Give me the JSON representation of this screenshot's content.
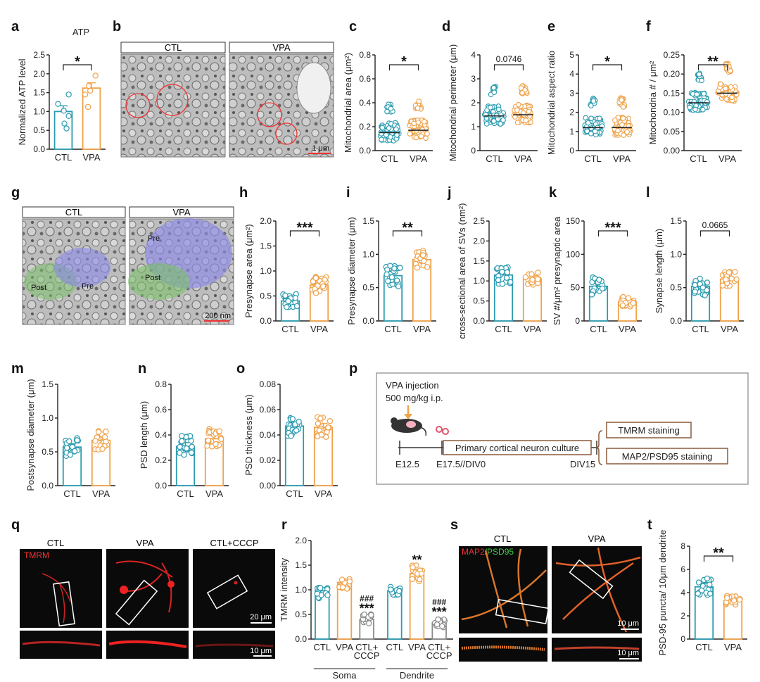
{
  "colors": {
    "ctl": "#2b9bb0",
    "vpa": "#f0a24a",
    "cccp": "#8a8a8a"
  },
  "chart_data": [
    {
      "id": "a",
      "type": "bar",
      "panel_label": "a",
      "title": "ATP",
      "ylabel": "Normalized ATP level",
      "categories": [
        "CTL",
        "VPA"
      ],
      "values": [
        1.0,
        1.62
      ],
      "sem": [
        0.15,
        0.14
      ],
      "points": [
        [
          0.55,
          0.68,
          0.88,
          1.02,
          1.2,
          1.45
        ],
        [
          1.12,
          1.45,
          1.55,
          1.68,
          1.95
        ]
      ],
      "ylim": [
        0,
        2.5
      ],
      "yticks": [
        "0.0",
        "0.5",
        "1.0",
        "1.5",
        "2.0",
        "2.5"
      ],
      "significance": "*"
    },
    {
      "id": "c",
      "type": "scatter",
      "panel_label": "c",
      "ylabel": "Mitochondrial area (μm²)",
      "categories": [
        "CTL",
        "VPA"
      ],
      "medians": [
        0.15,
        0.17
      ],
      "ylim": [
        0,
        0.8
      ],
      "yticks": [
        "0.0",
        "0.2",
        "0.4",
        "0.6",
        "0.8"
      ],
      "significance": "*"
    },
    {
      "id": "d",
      "type": "scatter",
      "panel_label": "d",
      "ylabel": "Mitochondrial perimeter (μm)",
      "categories": [
        "CTL",
        "VPA"
      ],
      "medians": [
        1.45,
        1.5
      ],
      "ylim": [
        0,
        4
      ],
      "yticks": [
        "0",
        "1",
        "2",
        "3",
        "4"
      ],
      "significance": "0.0746"
    },
    {
      "id": "e",
      "type": "scatter",
      "panel_label": "e",
      "ylabel": "Mitochondrial aspect ratio",
      "categories": [
        "CTL",
        "VPA"
      ],
      "medians": [
        1.2,
        1.2
      ],
      "ylim": [
        0,
        5
      ],
      "yticks": [
        "0",
        "1",
        "2",
        "3",
        "4",
        "5"
      ],
      "significance": "*"
    },
    {
      "id": "f",
      "type": "scatter",
      "panel_label": "f",
      "ylabel": "Mitochondria # / μm²",
      "categories": [
        "CTL",
        "VPA"
      ],
      "medians": [
        0.125,
        0.15
      ],
      "ylim": [
        0,
        0.25
      ],
      "yticks": [
        "0.00",
        "0.05",
        "0.10",
        "0.15",
        "0.20",
        "0.25"
      ],
      "significance": "**"
    },
    {
      "id": "h",
      "type": "bar",
      "panel_label": "h",
      "ylabel": "Presynapse area (μm²)",
      "categories": [
        "CTL",
        "VPA"
      ],
      "values": [
        0.4,
        0.72
      ],
      "sem": [
        0.05,
        0.06
      ],
      "ylim": [
        0,
        2.0
      ],
      "yticks": [
        "0.0",
        "0.5",
        "1.0",
        "1.5",
        "2.0"
      ],
      "significance": "***"
    },
    {
      "id": "i",
      "type": "bar",
      "panel_label": "i",
      "ylabel": "Presynapse diameter (μm)",
      "categories": [
        "CTL",
        "VPA"
      ],
      "values": [
        0.68,
        0.92
      ],
      "sem": [
        0.06,
        0.05
      ],
      "ylim": [
        0,
        1.5
      ],
      "yticks": [
        "0.0",
        "0.5",
        "1.0",
        "1.5"
      ],
      "significance": "**"
    },
    {
      "id": "j",
      "type": "bar",
      "panel_label": "j",
      "ylabel": "cross-sectional area of SVs (nm²)",
      "categories": [
        "CTL",
        "VPA"
      ],
      "values": [
        1.15,
        1.05
      ],
      "sem": [
        0.09,
        0.06
      ],
      "ylim": [
        0,
        2.5
      ],
      "yticks": [
        "0.0",
        "0.5",
        "1.0",
        "1.5",
        "2.0",
        "2.5"
      ],
      "significance": ""
    },
    {
      "id": "k",
      "type": "bar",
      "panel_label": "k",
      "ylabel": "SV #/μm² presynaptic area",
      "categories": [
        "CTL",
        "VPA"
      ],
      "values": [
        52,
        28
      ],
      "sem": [
        5,
        3
      ],
      "ylim": [
        0,
        150
      ],
      "yticks": [
        "0",
        "50",
        "100",
        "150"
      ],
      "significance": "***"
    },
    {
      "id": "l",
      "type": "bar",
      "panel_label": "l",
      "ylabel": "Synapse length (μm)",
      "categories": [
        "CTL",
        "VPA"
      ],
      "values": [
        0.52,
        0.63
      ],
      "sem": [
        0.05,
        0.04
      ],
      "ylim": [
        0,
        1.5
      ],
      "yticks": [
        "0.0",
        "0.5",
        "1.0",
        "1.5"
      ],
      "significance": "0.0665"
    },
    {
      "id": "m",
      "type": "bar",
      "panel_label": "m",
      "ylabel": "Postsynapse diameter (μm)",
      "categories": [
        "CTL",
        "VPA"
      ],
      "values": [
        0.57,
        0.67
      ],
      "sem": [
        0.05,
        0.05
      ],
      "ylim": [
        0,
        1.5
      ],
      "yticks": [
        "0.0",
        "0.5",
        "1.0",
        "1.5"
      ],
      "significance": ""
    },
    {
      "id": "n",
      "type": "bar",
      "panel_label": "n",
      "ylabel": "PSD length (μm)",
      "categories": [
        "CTL",
        "VPA"
      ],
      "values": [
        0.31,
        0.37
      ],
      "sem": [
        0.03,
        0.03
      ],
      "ylim": [
        0,
        0.8
      ],
      "yticks": [
        "0.0",
        "0.2",
        "0.4",
        "0.6",
        "0.8"
      ],
      "significance": ""
    },
    {
      "id": "o",
      "type": "bar",
      "panel_label": "o",
      "ylabel": "PSD thickness (μm)",
      "categories": [
        "CTL",
        "VPA"
      ],
      "values": [
        0.047,
        0.046
      ],
      "sem": [
        0.003,
        0.003
      ],
      "ylim": [
        0,
        0.08
      ],
      "yticks": [
        "0.00",
        "0.02",
        "0.04",
        "0.06",
        "0.08"
      ],
      "significance": ""
    },
    {
      "id": "r",
      "type": "bar",
      "panel_label": "r",
      "ylabel": "TMRM intensity",
      "groups": [
        "Soma",
        "Dendrite"
      ],
      "categories": [
        "CTL",
        "VPA",
        "CTL+ CCCP",
        "CTL",
        "VPA",
        "CTL+ CCCP"
      ],
      "values": [
        0.98,
        1.15,
        0.4,
        0.98,
        1.33,
        0.33
      ],
      "sem": [
        0.07,
        0.07,
        0.05,
        0.04,
        0.08,
        0.05
      ],
      "ylim": [
        0,
        2.0
      ],
      "yticks": [
        "0.0",
        "0.5",
        "1.0",
        "1.5",
        "2.0"
      ],
      "significance": [
        "",
        "",
        "###\n***",
        "",
        "**",
        "###\n***"
      ]
    },
    {
      "id": "t",
      "type": "bar",
      "panel_label": "t",
      "ylabel": "PSD-95 puncta/ 10μm dendrite",
      "categories": [
        "CTL",
        "VPA"
      ],
      "values": [
        4.5,
        3.3
      ],
      "sem": [
        0.3,
        0.15
      ],
      "ylim": [
        0,
        8
      ],
      "yticks": [
        "0",
        "2",
        "4",
        "6",
        "8"
      ],
      "significance": "**"
    }
  ],
  "images": {
    "b": {
      "label": "b",
      "titles": [
        "CTL",
        "VPA"
      ],
      "scalebar": "1 μm"
    },
    "g": {
      "label": "g",
      "titles": [
        "CTL",
        "VPA"
      ],
      "regions": [
        "Post",
        "Pre",
        "Pre",
        "Post"
      ],
      "scalebar": "200 nm"
    },
    "q": {
      "label": "q",
      "titles": [
        "CTL",
        "VPA",
        "CTL+CCCP"
      ],
      "stain": "TMRM",
      "scalebar_top": "20 μm",
      "scalebar_bottom": "10 μm"
    },
    "s": {
      "label": "s",
      "titles": [
        "CTL",
        "VPA"
      ],
      "stain_a": "MAP2",
      "stain_b": "/PSD95",
      "scalebar_top": "10 μm",
      "scalebar_bottom": "10 μm"
    }
  },
  "schematic": {
    "label": "p",
    "injection": "VPA injection",
    "dose": "500 mg/kg i.p.",
    "culture": "Primary cortical neuron culture",
    "e125": "E12.5",
    "e175": "E17.5//DIV0",
    "div15": "DIV15",
    "stain1": "TMRM staining",
    "stain2": "MAP2/PSD95 staining"
  }
}
